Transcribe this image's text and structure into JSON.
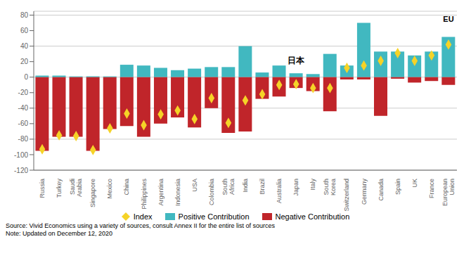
{
  "chart_data": {
    "type": "bar",
    "categories": [
      "Russia",
      "Turkey",
      "Saudi\nArabia",
      "Singapore",
      "Mexico",
      "China",
      "Philippines",
      "Argentina",
      "Indonesia",
      "USA",
      "Colombia",
      "South\nAfrica",
      "India",
      "Brazil",
      "Australia",
      "Japan",
      "Italy",
      "South\nKorea",
      "Switzerland",
      "Germany",
      "Canada",
      "Spain",
      "UK",
      "France",
      "European\nUnion"
    ],
    "series": [
      {
        "name": "Index",
        "type": "scatter",
        "marker": "diamond",
        "color": "#f5d327",
        "values": [
          -93,
          -75,
          -76,
          -94,
          -66,
          -47,
          -62,
          -48,
          -43,
          -54,
          -27,
          -59,
          -30,
          -22,
          -10,
          -9,
          -14,
          -14,
          12,
          15,
          21,
          31,
          21,
          28,
          42
        ]
      },
      {
        "name": "Positive Contribution",
        "type": "bar",
        "color": "#41b8c0",
        "values": [
          2,
          2,
          1,
          1,
          1,
          16,
          15,
          12,
          9,
          11,
          13,
          13,
          40,
          6,
          15,
          5,
          4,
          30,
          15,
          70,
          33,
          33,
          28,
          33,
          52
        ]
      },
      {
        "name": "Negative Contribution",
        "type": "bar",
        "color": "#c0252a",
        "values": [
          -95,
          -77,
          -77,
          -95,
          -67,
          -63,
          -77,
          -60,
          -52,
          -65,
          -40,
          -72,
          -70,
          -28,
          -25,
          -14,
          -18,
          -44,
          -3,
          -3,
          -50,
          -2,
          -7,
          -5,
          -10
        ]
      }
    ],
    "stacked": true,
    "ylim": [
      -120,
      85
    ],
    "yticks": [
      -120,
      -100,
      -80,
      -60,
      -40,
      -20,
      0,
      20,
      40,
      60,
      80
    ],
    "grid": true,
    "legend": "bottom",
    "annotations": [
      {
        "text": "EU",
        "x": "European\nUnion",
        "y": 83
      },
      {
        "text": "日本",
        "x": "Japan",
        "y": 13
      }
    ],
    "footnotes": [
      "Source: Vivid Economics using a variety of sources, consult Annex II for the entire list of sources",
      "Note: Updated on December 12, 2020"
    ]
  }
}
